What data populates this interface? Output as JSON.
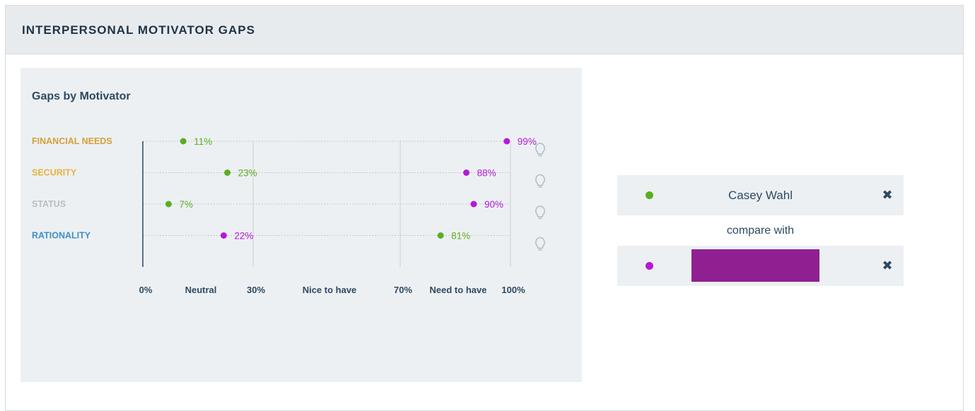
{
  "panel": {
    "title": "INTERPERSONAL MOTIVATOR GAPS"
  },
  "card": {
    "title": "Gaps by Motivator"
  },
  "colors": {
    "person_a": "#5aaf1f",
    "person_b": "#b31ad7",
    "compare_select": "#901f92"
  },
  "chart_data": {
    "type": "scatter",
    "x_range": [
      0,
      100
    ],
    "x_ticks": [
      {
        "value": 0,
        "label": "0%"
      },
      {
        "value": 30,
        "label": "30%"
      },
      {
        "value": 70,
        "label": "70%"
      },
      {
        "value": 100,
        "label": "100%"
      }
    ],
    "zones": [
      {
        "label": "Neutral",
        "from": 0,
        "to": 30
      },
      {
        "label": "Nice to have",
        "from": 30,
        "to": 70
      },
      {
        "label": "Need to have",
        "from": 70,
        "to": 100
      }
    ],
    "categories": [
      {
        "label": "FINANCIAL NEEDS",
        "color": "#d4a03a"
      },
      {
        "label": "SECURITY",
        "color": "#e8b33c"
      },
      {
        "label": "STATUS",
        "color": "#b9bec3"
      },
      {
        "label": "RATIONALITY",
        "color": "#3d8fc6"
      }
    ],
    "series": [
      {
        "color": "#5aaf1f",
        "values": [
          11,
          23,
          7,
          81
        ]
      },
      {
        "color": "#b31ad7",
        "values": [
          99,
          88,
          90,
          22
        ]
      }
    ],
    "grid": true,
    "icons": [
      "lightbulb-icon",
      "lightbulb-icon",
      "lightbulb-icon",
      "lightbulb-icon"
    ]
  },
  "legend": {
    "person_a_name": "Casey Wahl",
    "compare_label": "compare with",
    "remove_icon": "close-x-icon",
    "remove_glyph": "✖"
  }
}
